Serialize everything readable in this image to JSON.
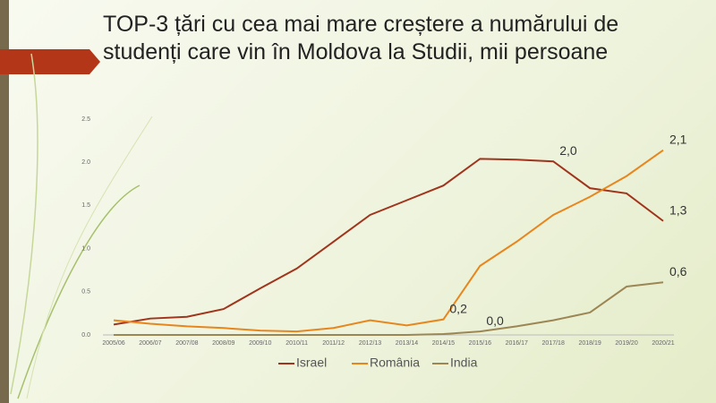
{
  "chart_data": {
    "type": "line",
    "title": "TOP-3 țări cu cea mai mare creștere a numărului de studenți care vin în Moldova la Studii, mii persoane",
    "categories": [
      "2005/06",
      "2006/07",
      "2007/08",
      "2008/09",
      "2009/10",
      "2010/11",
      "2011/12",
      "2012/13",
      "2013/14",
      "2014/15",
      "2015/16",
      "2016/17",
      "2017/18",
      "2018/19",
      "2019/20",
      "2020/21"
    ],
    "series": [
      {
        "name": "Israel",
        "color": "#a0341c",
        "values": [
          0.12,
          0.19,
          0.21,
          0.3,
          0.54,
          0.77,
          1.08,
          1.39,
          1.56,
          1.73,
          2.04,
          2.03,
          2.01,
          1.7,
          1.64,
          1.32
        ],
        "value_labels": [
          null,
          null,
          null,
          null,
          null,
          null,
          null,
          null,
          null,
          null,
          null,
          null,
          "2,0",
          null,
          null,
          "1,3"
        ]
      },
      {
        "name": "România",
        "color": "#e8861e",
        "values": [
          0.17,
          0.13,
          0.1,
          0.08,
          0.05,
          0.04,
          0.08,
          0.17,
          0.11,
          0.18,
          0.8,
          1.08,
          1.39,
          1.6,
          1.84,
          2.14
        ],
        "value_labels": [
          null,
          null,
          null,
          null,
          null,
          null,
          null,
          null,
          null,
          "0,2",
          null,
          null,
          null,
          null,
          null,
          "2,1"
        ]
      },
      {
        "name": "India",
        "color": "#9c8654",
        "values": [
          0.0,
          0.0,
          0.0,
          0.0,
          0.0,
          0.0,
          0.0,
          0.0,
          0.0,
          0.01,
          0.04,
          0.1,
          0.17,
          0.26,
          0.56,
          0.61
        ],
        "value_labels": [
          null,
          null,
          null,
          null,
          null,
          null,
          null,
          null,
          null,
          null,
          "0,0",
          null,
          null,
          null,
          null,
          "0,6"
        ]
      }
    ],
    "ylim": [
      0,
      2.5
    ],
    "yticks": [
      {
        "value": 0,
        "label": "0.0"
      },
      {
        "value": 0.5,
        "label": "0.5"
      },
      {
        "value": 1,
        "label": "1.0"
      },
      {
        "value": 1.5,
        "label": "1.5"
      },
      {
        "value": 2,
        "label": "2.0"
      },
      {
        "value": 2.5,
        "label": "2.5"
      }
    ],
    "legend": "bottom"
  }
}
